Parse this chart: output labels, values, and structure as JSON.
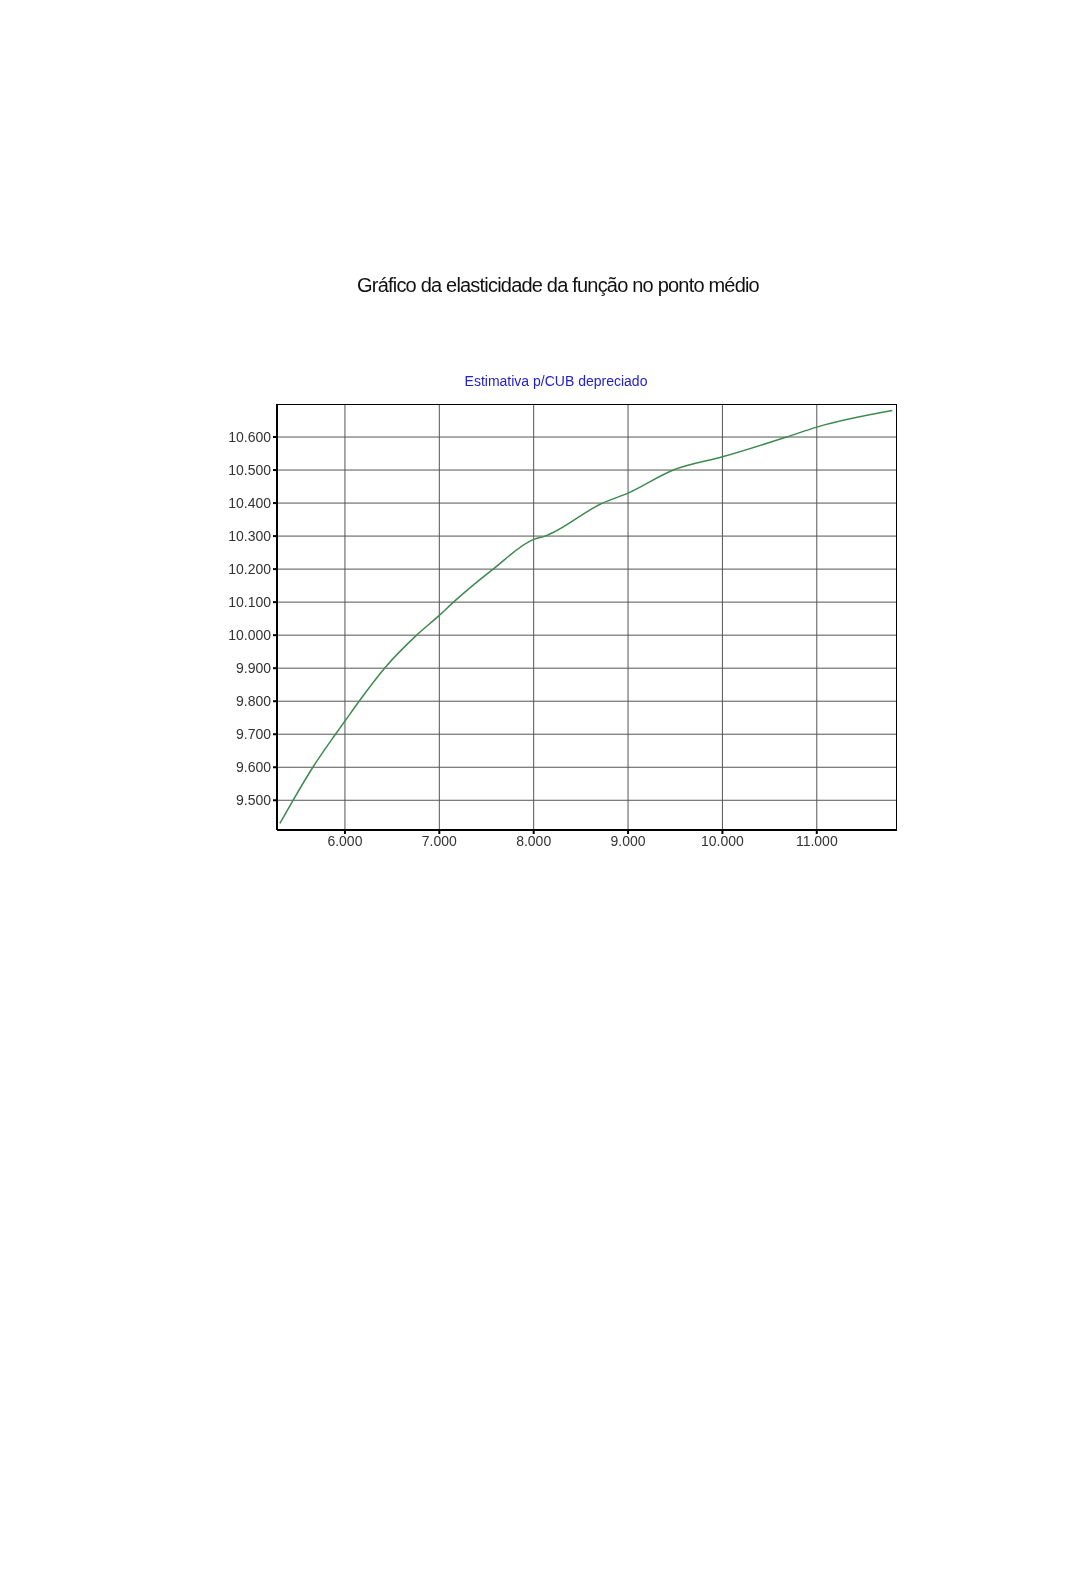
{
  "chart_data": {
    "type": "line",
    "title": "Gráfico da elasticidade da função no ponto médio",
    "subtitle": "Estimativa p/CUB depreciado",
    "x": [
      5.31,
      5.45,
      5.66,
      5.9,
      6.0,
      6.15,
      6.42,
      6.76,
      7.0,
      7.15,
      7.57,
      8.0,
      8.12,
      8.73,
      9.0,
      9.48,
      10.0,
      10.68,
      11.0,
      11.8
    ],
    "series": [
      {
        "color": "#3d8a4e",
        "values": [
          9.43,
          9.5,
          9.6,
          9.7,
          9.74,
          9.8,
          9.9,
          10.0,
          10.06,
          10.1,
          10.2,
          10.29,
          10.3,
          10.4,
          10.43,
          10.5,
          10.54,
          10.6,
          10.63,
          10.68
        ]
      }
    ],
    "xlim": [
      5.28,
      11.85
    ],
    "ylim": [
      9.41,
      10.7
    ],
    "xticks": [
      {
        "value": 6,
        "label": "6.000"
      },
      {
        "value": 7,
        "label": "7.000"
      },
      {
        "value": 8,
        "label": "8.000"
      },
      {
        "value": 9,
        "label": "9.000"
      },
      {
        "value": 10,
        "label": "10.000"
      },
      {
        "value": 11,
        "label": "11.000"
      }
    ],
    "yticks": [
      {
        "value": 9.5,
        "label": "9.500"
      },
      {
        "value": 9.6,
        "label": "9.600"
      },
      {
        "value": 9.7,
        "label": "9.700"
      },
      {
        "value": 9.8,
        "label": "9.800"
      },
      {
        "value": 9.9,
        "label": "9.900"
      },
      {
        "value": 10.0,
        "label": "10.000"
      },
      {
        "value": 10.1,
        "label": "10.100"
      },
      {
        "value": 10.2,
        "label": "10.200"
      },
      {
        "value": 10.3,
        "label": "10.300"
      },
      {
        "value": 10.4,
        "label": "10.400"
      },
      {
        "value": 10.5,
        "label": "10.500"
      },
      {
        "value": 10.6,
        "label": "10.600"
      }
    ],
    "grid": true,
    "marker": "none",
    "line_style": "solid"
  }
}
